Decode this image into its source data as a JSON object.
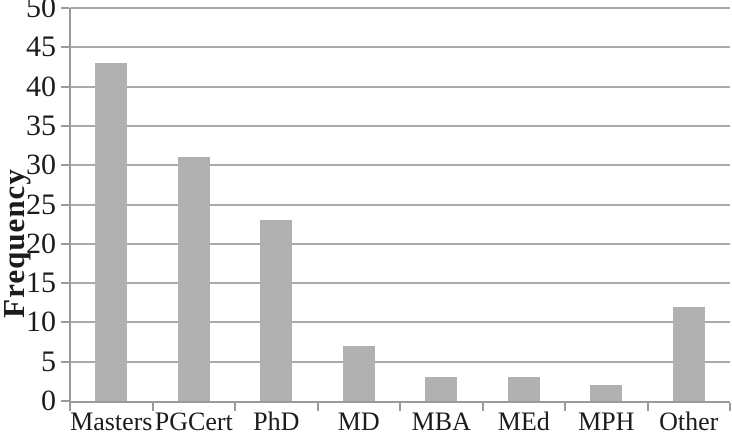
{
  "chart_data": {
    "type": "bar",
    "title": "",
    "xlabel": "",
    "ylabel": "Frequency",
    "categories": [
      "Masters",
      "PGCert",
      "PhD",
      "MD",
      "MBA",
      "MEd",
      "MPH",
      "Other"
    ],
    "values": [
      43,
      31,
      23,
      7,
      3,
      3,
      2,
      12
    ],
    "ylim": [
      0,
      50
    ],
    "ytick_step": 5,
    "ytick_labels": [
      "0",
      "5",
      "10",
      "15",
      "20",
      "25",
      "30",
      "35",
      "40",
      "45",
      "50"
    ],
    "grid": "horizontal",
    "legend": "none",
    "colors": {
      "bar": "#b1b1b1",
      "gridline": "#aaaaaa",
      "axis": "#9a9a9a",
      "text": "#1c1c1c",
      "background": "#ffffff"
    }
  }
}
